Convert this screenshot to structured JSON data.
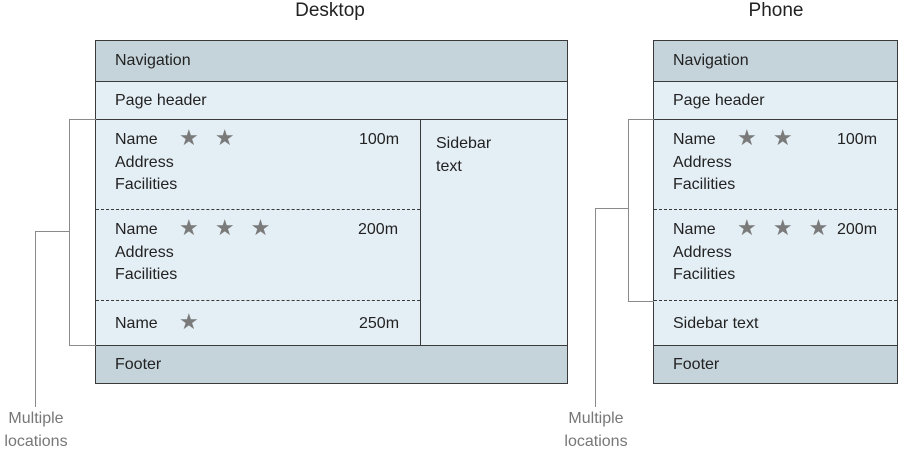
{
  "desktop": {
    "title": "Desktop",
    "navigation": "Navigation",
    "page_header": "Page header",
    "items": [
      {
        "name": "Name",
        "stars": "★ ★",
        "distance": "100m",
        "address": "Address",
        "facilities": "Facilities"
      },
      {
        "name": "Name",
        "stars": "★ ★ ★",
        "distance": "200m",
        "address": "Address",
        "facilities": "Facilities"
      },
      {
        "name": "Name",
        "stars": "★",
        "distance": "250m"
      }
    ],
    "sidebar_line1": "Sidebar",
    "sidebar_line2": "text",
    "footer": "Footer",
    "callout_line1": "Multiple",
    "callout_line2": "locations"
  },
  "phone": {
    "title": "Phone",
    "navigation": "Navigation",
    "page_header": "Page header",
    "items": [
      {
        "name": "Name",
        "stars": "★ ★",
        "distance": "100m",
        "address": "Address",
        "facilities": "Facilities"
      },
      {
        "name": "Name",
        "stars": "★ ★ ★",
        "distance": "200m",
        "address": "Address",
        "facilities": "Facilities"
      }
    ],
    "sidebar": "Sidebar text",
    "footer": "Footer",
    "callout_line1": "Multiple",
    "callout_line2": "locations"
  }
}
